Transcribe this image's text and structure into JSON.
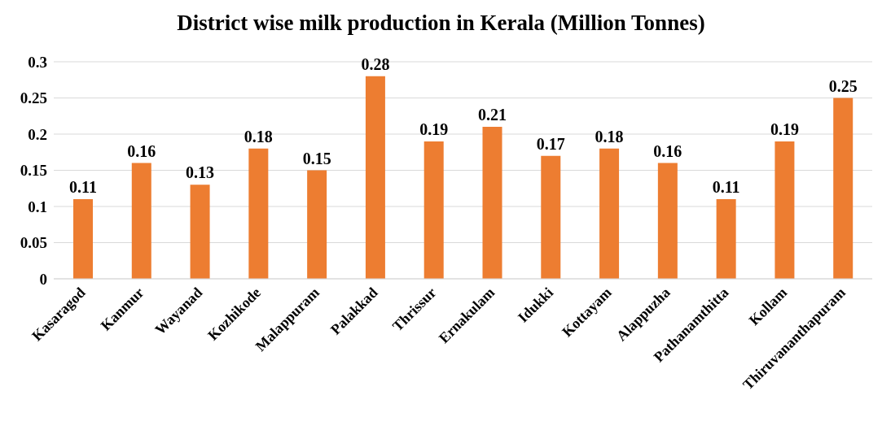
{
  "chart_data": {
    "type": "bar",
    "title": "District wise milk production in Kerala (Million Tonnes)",
    "categories": [
      "Kasaragod",
      "Kanmur",
      "Wayanad",
      "Kozhikode",
      "Malappuram",
      "Palakkad",
      "Thrissur",
      "Ernakulam",
      "Idukki",
      "Kottayam",
      "Alappuzha",
      "Pathanamthitta",
      "Kollam",
      "Thiruvananthapuram"
    ],
    "values": [
      0.11,
      0.16,
      0.13,
      0.18,
      0.15,
      0.28,
      0.19,
      0.21,
      0.17,
      0.18,
      0.16,
      0.11,
      0.19,
      0.25
    ],
    "color": "#ed7d31",
    "ylim": [
      0,
      0.3
    ],
    "yticks": [
      0,
      0.05,
      0.1,
      0.15,
      0.2,
      0.25,
      0.3
    ],
    "grid": "y",
    "data_labels": true
  }
}
